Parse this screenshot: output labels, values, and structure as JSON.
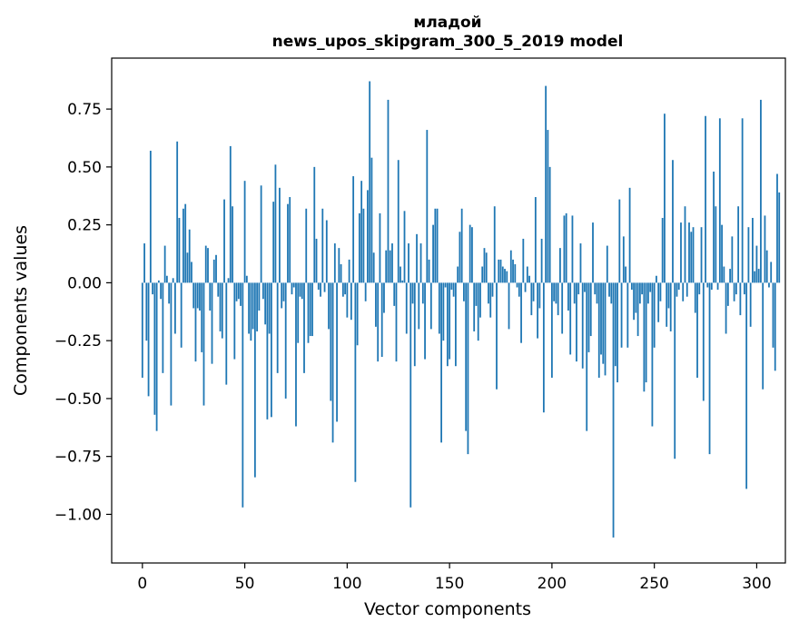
{
  "chart_data": {
    "type": "bar",
    "title": "младой",
    "subtitle": "news_upos_skipgram_300_5_2019 model",
    "xlabel": "Vector components",
    "ylabel": "Components values",
    "xlim": [
      -15,
      314
    ],
    "ylim": [
      -1.21,
      0.97
    ],
    "xticks": [
      0,
      50,
      100,
      150,
      200,
      250,
      300
    ],
    "yticks": [
      0.75,
      0.5,
      0.25,
      0.0,
      -0.25,
      -0.5,
      -0.75,
      -1.0
    ],
    "ytick_labels": [
      "0.75",
      "0.50",
      "0.25",
      "0.00",
      "−0.25",
      "−0.50",
      "−0.75",
      "−1.00"
    ],
    "bar_color": "#1f77b4",
    "values": [
      -0.41,
      0.17,
      -0.25,
      -0.49,
      0.57,
      -0.05,
      -0.57,
      -0.64,
      0.01,
      -0.07,
      -0.39,
      0.16,
      0.03,
      -0.09,
      -0.53,
      0.02,
      -0.22,
      0.61,
      0.28,
      -0.28,
      0.32,
      0.34,
      0.13,
      0.23,
      0.09,
      -0.11,
      -0.34,
      -0.11,
      -0.12,
      -0.3,
      -0.53,
      0.16,
      0.15,
      -0.12,
      -0.35,
      0.1,
      0.12,
      -0.06,
      -0.21,
      -0.24,
      0.36,
      -0.44,
      0.02,
      0.59,
      0.33,
      -0.33,
      -0.08,
      -0.07,
      -0.1,
      -0.97,
      0.44,
      0.03,
      -0.22,
      -0.25,
      -0.2,
      -0.84,
      -0.21,
      -0.12,
      0.42,
      -0.07,
      -0.18,
      -0.59,
      -0.22,
      -0.58,
      0.35,
      0.51,
      -0.39,
      0.41,
      -0.11,
      -0.08,
      -0.5,
      0.34,
      0.37,
      -0.05,
      -0.02,
      -0.62,
      -0.26,
      -0.06,
      -0.07,
      -0.39,
      0.32,
      -0.26,
      -0.23,
      -0.23,
      0.5,
      0.19,
      -0.03,
      -0.06,
      0.32,
      -0.04,
      0.27,
      -0.2,
      -0.51,
      -0.69,
      0.17,
      -0.6,
      0.15,
      0.08,
      -0.06,
      -0.05,
      -0.15,
      0.1,
      -0.16,
      0.46,
      -0.86,
      -0.27,
      0.3,
      0.44,
      0.32,
      -0.08,
      0.4,
      0.87,
      0.54,
      0.13,
      -0.19,
      -0.34,
      0.3,
      -0.32,
      -0.13,
      0.14,
      0.79,
      0.14,
      0.17,
      -0.1,
      -0.34,
      0.53,
      0.07,
      0.01,
      0.31,
      -0.22,
      0.17,
      -0.97,
      -0.09,
      -0.36,
      0.21,
      -0.2,
      0.17,
      -0.09,
      -0.33,
      0.66,
      0.1,
      -0.2,
      0.25,
      0.32,
      0.32,
      -0.22,
      -0.69,
      -0.25,
      -0.02,
      -0.36,
      -0.33,
      -0.03,
      -0.06,
      -0.36,
      0.07,
      0.22,
      0.32,
      -0.08,
      -0.64,
      -0.74,
      0.25,
      0.24,
      -0.21,
      -0.1,
      -0.25,
      -0.15,
      0.07,
      0.15,
      0.13,
      -0.09,
      -0.15,
      -0.06,
      0.33,
      -0.46,
      0.1,
      0.1,
      0.07,
      0.06,
      0.05,
      -0.2,
      0.14,
      0.1,
      0.08,
      -0.02,
      -0.06,
      -0.26,
      0.19,
      -0.04,
      0.07,
      0.03,
      -0.14,
      -0.08,
      0.37,
      -0.24,
      -0.11,
      0.19,
      -0.56,
      0.85,
      0.66,
      0.5,
      -0.41,
      -0.08,
      -0.09,
      -0.14,
      0.15,
      -0.22,
      0.29,
      0.3,
      -0.12,
      -0.31,
      0.29,
      -0.09,
      -0.34,
      -0.05,
      0.17,
      -0.37,
      -0.04,
      -0.64,
      -0.3,
      -0.23,
      0.26,
      -0.05,
      -0.09,
      -0.41,
      -0.31,
      -0.35,
      -0.4,
      0.16,
      -0.06,
      -0.09,
      -1.1,
      -0.36,
      -0.43,
      0.36,
      -0.28,
      0.2,
      0.07,
      -0.28,
      0.41,
      -0.03,
      -0.16,
      -0.13,
      -0.23,
      -0.09,
      -0.05,
      -0.47,
      -0.43,
      -0.09,
      -0.04,
      -0.62,
      -0.28,
      0.03,
      -0.17,
      -0.08,
      0.28,
      0.73,
      -0.19,
      -0.11,
      -0.21,
      0.53,
      -0.76,
      -0.06,
      -0.03,
      0.26,
      -0.08,
      0.33,
      -0.06,
      0.26,
      0.22,
      0.24,
      -0.13,
      -0.41,
      -0.05,
      0.24,
      -0.51,
      0.72,
      -0.02,
      -0.74,
      -0.03,
      0.48,
      0.33,
      -0.03,
      0.71,
      0.25,
      0.07,
      -0.22,
      -0.1,
      0.06,
      0.2,
      -0.08,
      -0.05,
      0.33,
      -0.14,
      0.71,
      -0.05,
      -0.89,
      0.24,
      -0.19,
      0.28,
      0.05,
      0.16,
      0.06,
      0.79,
      -0.46,
      0.29,
      0.14,
      -0.02,
      0.09,
      -0.28,
      -0.38,
      0.47,
      0.39
    ]
  }
}
